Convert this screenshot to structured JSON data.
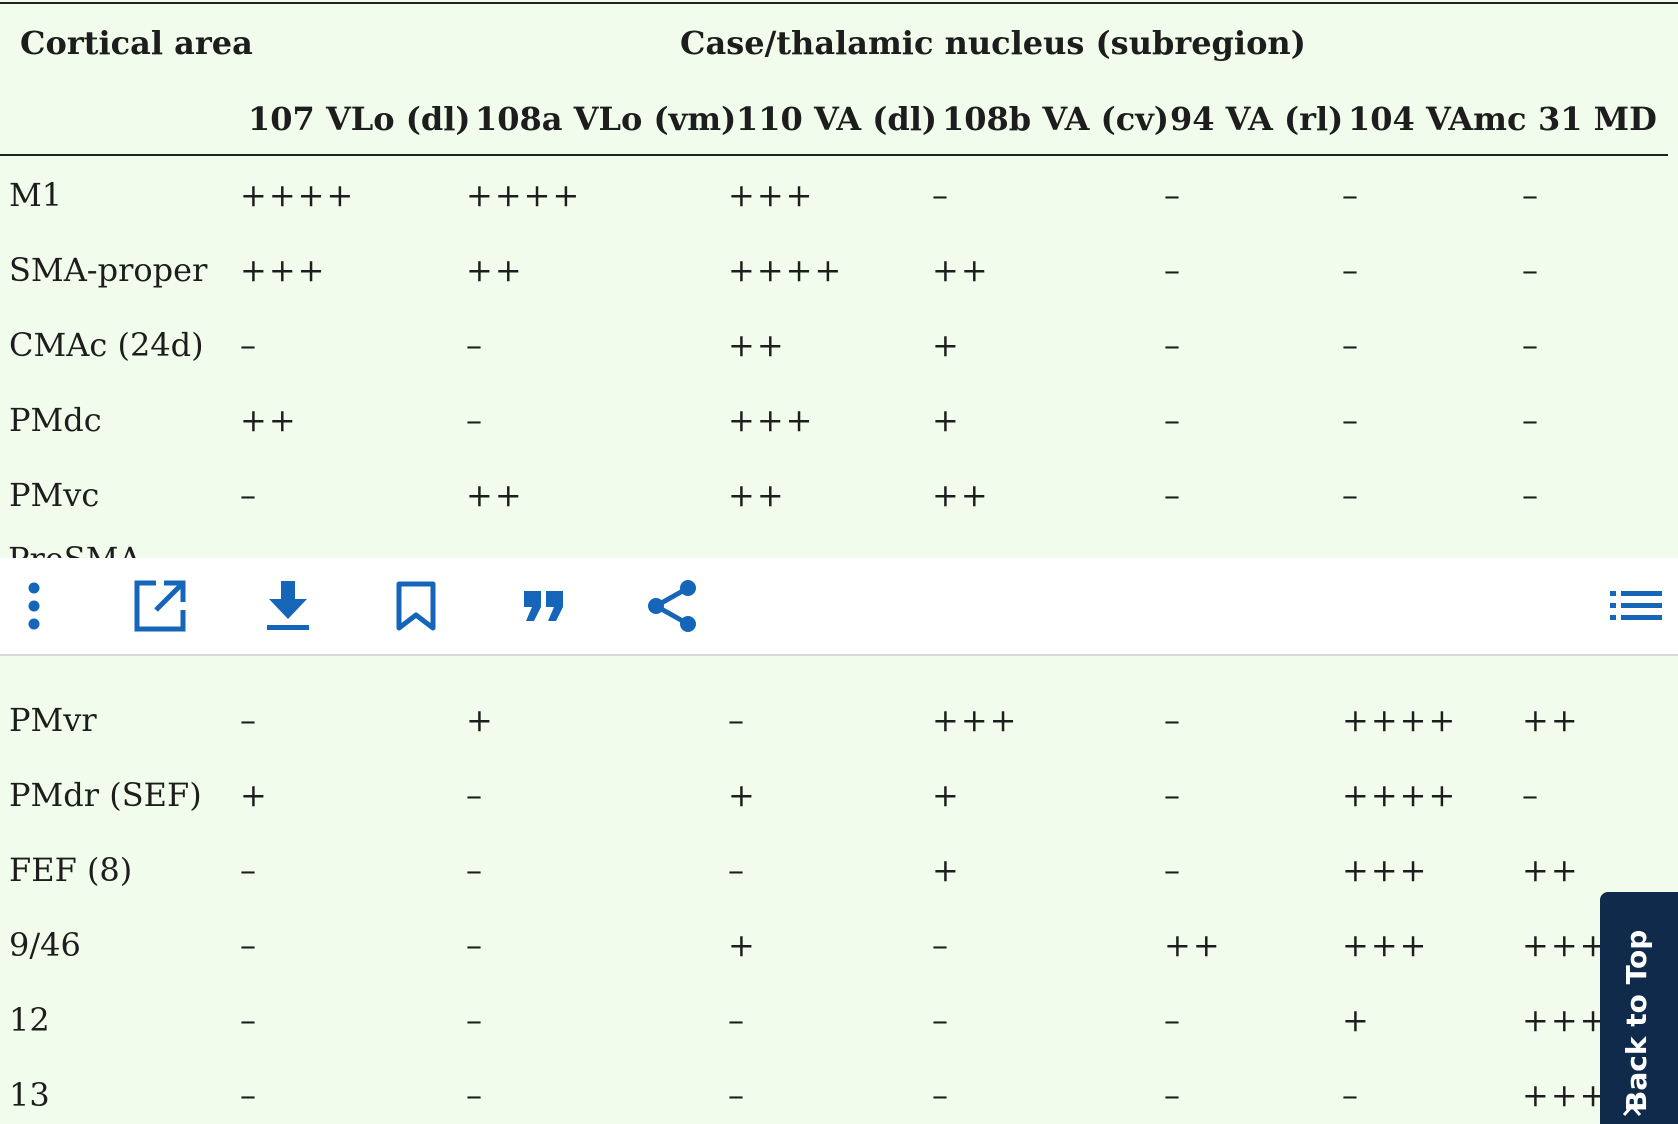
{
  "table": {
    "header": {
      "row_label_title": "Cortical area",
      "group_title": "Case/thalamic nucleus (subregion)",
      "columns": [
        "107 VLo (dl)",
        "108a VLo (vm)",
        "110 VA (dl)",
        "108b VA (cv)",
        "94 VA (rl)",
        "104 VAmc",
        "31 MD"
      ]
    },
    "rows_top": [
      {
        "label": "M1",
        "cells": [
          "++++",
          "++++",
          "+++",
          "–",
          "–",
          "–",
          "–"
        ]
      },
      {
        "label": "SMA-proper",
        "cells": [
          "+++",
          "++",
          "++++",
          "++",
          "–",
          "–",
          "–"
        ]
      },
      {
        "label": "CMAc (24d)",
        "cells": [
          "–",
          "–",
          "++",
          "+",
          "–",
          "–",
          "–"
        ]
      },
      {
        "label": "PMdc",
        "cells": [
          "++",
          "–",
          "+++",
          "+",
          "–",
          "–",
          "–"
        ]
      },
      {
        "label": "PMvc",
        "cells": [
          "–",
          "++",
          "++",
          "++",
          "–",
          "–",
          "–"
        ]
      }
    ],
    "rows_bottom": [
      {
        "label": "PMvr",
        "cells": [
          "–",
          "+",
          "–",
          "+++",
          "–",
          "++++",
          "++"
        ]
      },
      {
        "label": "PMdr (SEF)",
        "cells": [
          "+",
          "–",
          "+",
          "+",
          "–",
          "++++",
          "–"
        ]
      },
      {
        "label": "FEF (8)",
        "cells": [
          "–",
          "–",
          "–",
          "+",
          "–",
          "+++",
          "++"
        ]
      },
      {
        "label": "9/46",
        "cells": [
          "–",
          "–",
          "+",
          "–",
          "++",
          "+++",
          "+++"
        ]
      },
      {
        "label": "12",
        "cells": [
          "–",
          "–",
          "–",
          "–",
          "–",
          "+",
          "+++"
        ]
      },
      {
        "label": "13",
        "cells": [
          "–",
          "–",
          "–",
          "–",
          "–",
          "–",
          "+++"
        ]
      }
    ]
  },
  "toolbar": {
    "icons": [
      "more-vertical-icon",
      "open-external-icon",
      "download-icon",
      "bookmark-icon",
      "quote-icon",
      "share-icon",
      "table-of-contents-icon"
    ],
    "accent_color": "#1565b8"
  },
  "back_to_top": {
    "label": "Back to Top"
  }
}
